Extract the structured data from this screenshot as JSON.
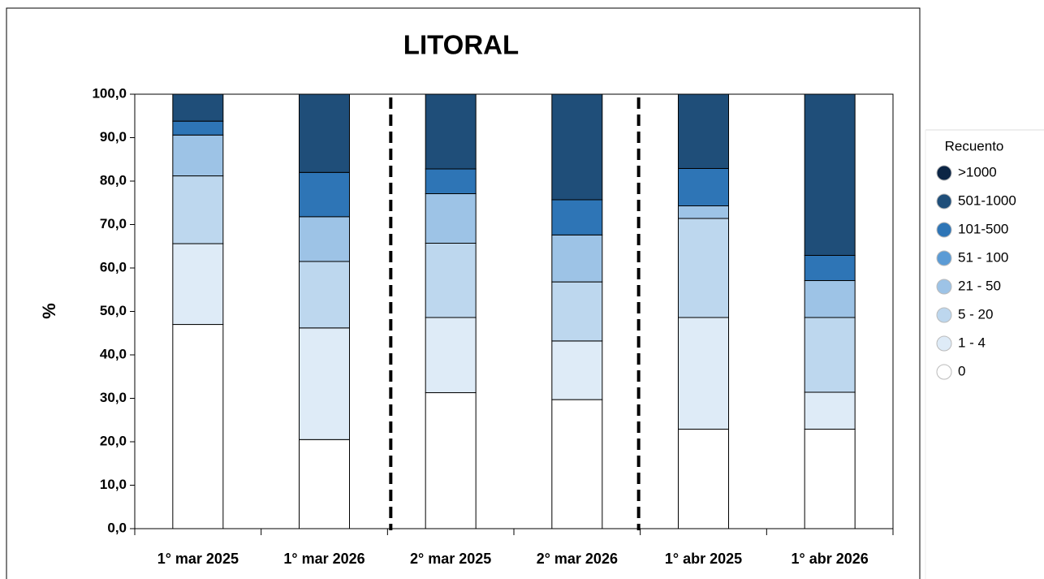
{
  "chart_data": {
    "type": "stacked_bar",
    "title": "LITORAL",
    "y_label": "%",
    "legend_title": "Recuento",
    "legend": "right",
    "categories": [
      "1° mar 2025",
      "1° mar 2026",
      "2° mar 2025",
      "2° mar 2026",
      "1° abr 2025",
      "1° abr 2026"
    ],
    "series": [
      {
        "name": "0",
        "color": "#ffffff",
        "values": [
          47.0,
          20.5,
          31.3,
          29.7,
          22.9,
          22.9
        ]
      },
      {
        "name": "1 - 4",
        "color": "#deebf7",
        "values": [
          18.6,
          25.7,
          17.3,
          13.5,
          25.7,
          8.5
        ]
      },
      {
        "name": "5 - 20",
        "color": "#bdd7ee",
        "values": [
          15.6,
          15.3,
          17.1,
          13.6,
          22.8,
          17.2
        ]
      },
      {
        "name": "21 - 50",
        "color": "#9dc3e6",
        "values": [
          9.4,
          10.3,
          11.4,
          10.8,
          2.9,
          8.5
        ]
      },
      {
        "name": "51 - 100",
        "color": "#5b9bd5",
        "values": [
          0,
          0,
          0,
          0,
          0,
          0
        ]
      },
      {
        "name": "101-500",
        "color": "#2e75b6",
        "values": [
          3.2,
          10.2,
          5.7,
          8.1,
          8.6,
          5.8
        ]
      },
      {
        "name": "501-1000",
        "color": "#1f4e79",
        "values": [
          6.2,
          18.0,
          17.2,
          24.3,
          17.1,
          37.1
        ]
      },
      {
        "name": ">1000",
        "color": "#0b2545",
        "values": [
          0,
          0,
          0,
          0,
          0,
          0
        ]
      }
    ],
    "ylim": [
      0,
      100
    ],
    "yticks": [
      {
        "value": 0,
        "label": "0,0"
      },
      {
        "value": 10,
        "label": "10,0"
      },
      {
        "value": 20,
        "label": "20,0"
      },
      {
        "value": 30,
        "label": "30,0"
      },
      {
        "value": 40,
        "label": "40,0"
      },
      {
        "value": 50,
        "label": "50,0"
      },
      {
        "value": 60,
        "label": "60,0"
      },
      {
        "value": 70,
        "label": "70,0"
      },
      {
        "value": 80,
        "label": "80,0"
      },
      {
        "value": 90,
        "label": "90,0"
      },
      {
        "value": 100,
        "label": "100,0"
      }
    ]
  }
}
